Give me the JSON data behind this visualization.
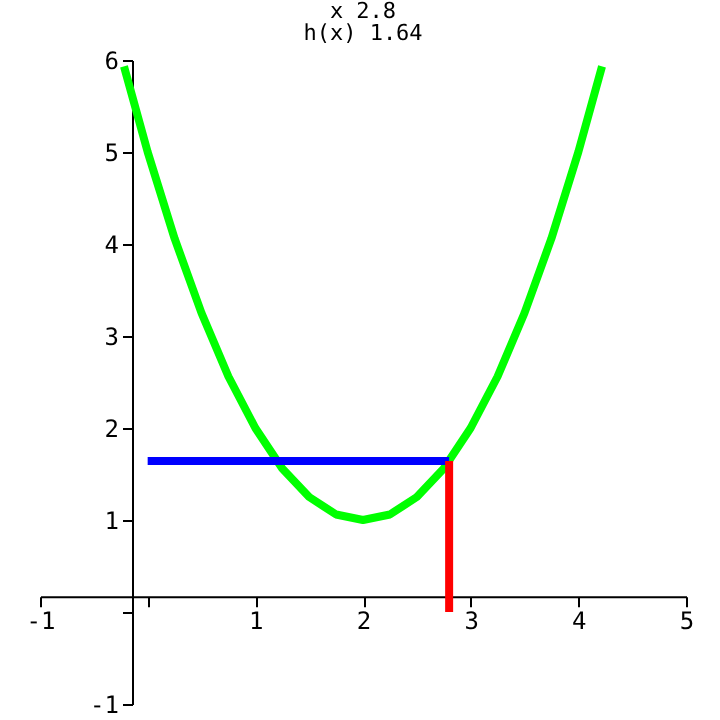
{
  "chart_data": {
    "type": "line",
    "title": "x    2.8",
    "subtitle": "h(x)  1.64",
    "xlim": [
      -1,
      5
    ],
    "ylim": [
      -1,
      6
    ],
    "xticks": [
      -1,
      {
        "value": 0,
        "label": null
      },
      1,
      2,
      3,
      4,
      5
    ],
    "yticks": [
      -1,
      {
        "value": 0,
        "label": null
      },
      1,
      2,
      3,
      4,
      5,
      6
    ],
    "grid": false,
    "marker": "none",
    "line_style": "solid",
    "series": [
      {
        "color": "#00ff00",
        "x": [
          -0.22,
          0,
          0.25,
          0.5,
          0.75,
          1,
          1.25,
          1.5,
          1.75,
          2,
          2.25,
          2.5,
          2.75,
          3,
          3.25,
          3.5,
          3.75,
          4,
          4.22
        ],
        "values": [
          5.93,
          5,
          4.06,
          3.25,
          2.56,
          2,
          1.56,
          1.25,
          1.06,
          1,
          1.06,
          1.25,
          1.56,
          2,
          2.56,
          3.25,
          4.06,
          5,
          5.93
        ]
      },
      {
        "color": "#0000ff",
        "x": [
          0,
          2.8
        ],
        "values": [
          1.64,
          1.64
        ]
      },
      {
        "color": "#ff0000",
        "x": [
          2.8,
          2.8
        ],
        "values": [
          0,
          1.64
        ]
      }
    ]
  }
}
